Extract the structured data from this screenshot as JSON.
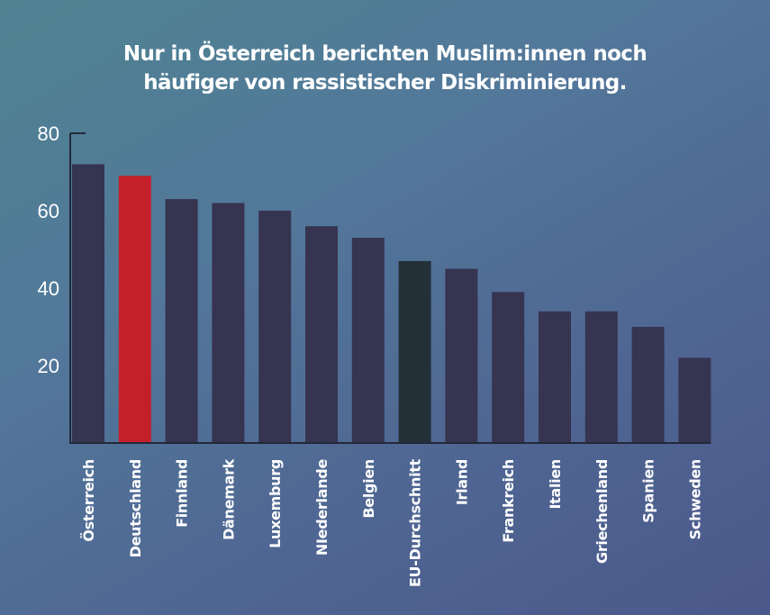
{
  "chart_data": {
    "type": "bar",
    "title": "Nur in Österreich berichten Muslim:innen noch häufiger von rassistischer Diskriminierung.",
    "title_lines": [
      "Nur in Österreich berichten Muslim:innen noch",
      "häufiger von rassistischer Diskriminierung."
    ],
    "xlabel": "",
    "ylabel": "",
    "ylim": [
      0,
      80
    ],
    "yticks": [
      20,
      40,
      60,
      80
    ],
    "ytick_labels": [
      "20",
      "40",
      "60",
      "80"
    ],
    "grid": false,
    "legend": null,
    "categories": [
      "Österreich",
      "Deutschland",
      "Finnland",
      "Dänemark",
      "Luxemburg",
      "NIederlande",
      "Belgien",
      "EU-Durchschnitt",
      "Irland",
      "Frankreich",
      "Italien",
      "Griechenland",
      "Spanien",
      "Schweden"
    ],
    "values": [
      72,
      69,
      63,
      62,
      60,
      56,
      53,
      47,
      45,
      39,
      34,
      34,
      30,
      22
    ],
    "bar_colors": [
      "#363450",
      "#c4202a",
      "#363450",
      "#363450",
      "#363450",
      "#363450",
      "#363450",
      "#243038",
      "#363450",
      "#363450",
      "#363450",
      "#363450",
      "#363450",
      "#363450"
    ]
  },
  "colors": {
    "default_bar": "#363450",
    "highlight_bar": "#c4202a",
    "eu_average_bar": "#243038",
    "axis": "#22293a",
    "text": "#ffffff"
  }
}
